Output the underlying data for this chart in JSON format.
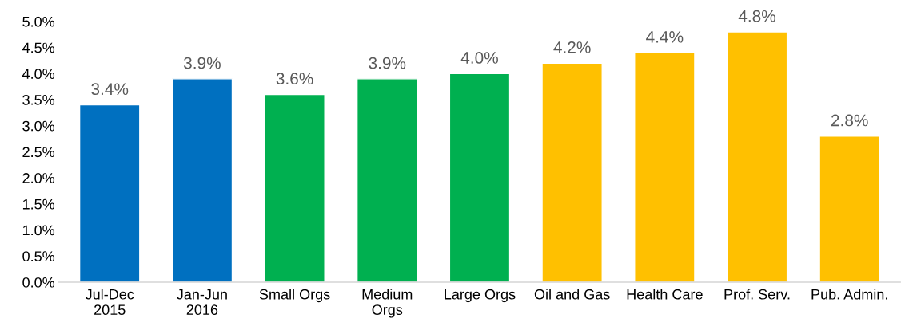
{
  "chart_data": {
    "type": "bar",
    "categories": [
      "Jul-Dec\n2015",
      "Jan-Jun\n2016",
      "Small Orgs",
      "Medium\nOrgs",
      "Large Orgs",
      "Oil and Gas",
      "Health Care",
      "Prof. Serv.",
      "Pub. Admin."
    ],
    "values": [
      3.4,
      3.9,
      3.6,
      3.9,
      4.0,
      4.2,
      4.4,
      4.8,
      2.8
    ],
    "colors": [
      "#0070c0",
      "#0070c0",
      "#00b050",
      "#00b050",
      "#00b050",
      "#ffc000",
      "#ffc000",
      "#ffc000",
      "#ffc000"
    ],
    "value_labels": [
      "3.4%",
      "3.9%",
      "3.6%",
      "3.9%",
      "4.0%",
      "4.2%",
      "4.4%",
      "4.8%",
      "2.8%"
    ],
    "ylim": [
      0,
      5
    ],
    "yticks": [
      {
        "value": 0,
        "label": "0.0%"
      },
      {
        "value": 0.5,
        "label": "0.5%"
      },
      {
        "value": 1,
        "label": "1.0%"
      },
      {
        "value": 1.5,
        "label": "1.5%"
      },
      {
        "value": 2,
        "label": "2.0%"
      },
      {
        "value": 2.5,
        "label": "2.5%"
      },
      {
        "value": 3,
        "label": "3.0%"
      },
      {
        "value": 3.5,
        "label": "3.5%"
      },
      {
        "value": 4,
        "label": "4.0%"
      },
      {
        "value": 4.5,
        "label": "4.5%"
      },
      {
        "value": 5,
        "label": "5.0%"
      }
    ],
    "grid": false,
    "legend": false
  }
}
